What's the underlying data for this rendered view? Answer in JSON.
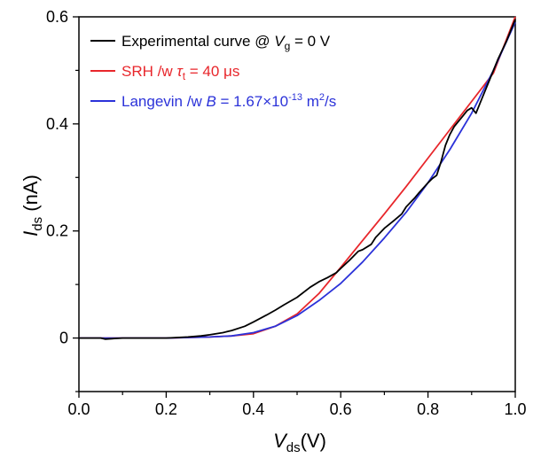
{
  "chart_data": {
    "type": "line",
    "x_axis": {
      "label_main": "V",
      "label_sub": "ds",
      "label_rest": "(V)",
      "range": [
        0.0,
        1.0
      ],
      "ticks": [
        0.0,
        0.2,
        0.4,
        0.6,
        0.8,
        1.0
      ],
      "tick_labels": [
        "0.0",
        "0.2",
        "0.4",
        "0.6",
        "0.8",
        "1.0"
      ]
    },
    "y_axis": {
      "label_main": "I",
      "label_sub": "ds",
      "label_rest": "(nA)",
      "range": [
        -0.1,
        0.6
      ],
      "ticks": [
        0,
        0.2,
        0.4,
        0.6
      ],
      "tick_labels": [
        "0",
        "0.2",
        "0.4",
        "0.6"
      ]
    },
    "grid": false,
    "legend_position": "top-left",
    "legend": [
      {
        "prefix": "Experimental curve @ ",
        "var": "V",
        "sub": "g",
        "suffix": " = 0 V",
        "color": "#000000"
      },
      {
        "prefix": "SRH /w ",
        "var": "τ",
        "sub": "t",
        "suffix": " = 40 μs",
        "color": "#e8262b"
      },
      {
        "prefix": "Langevin /w ",
        "var": "B",
        "sub": "",
        "suffix": " = 1.67×10",
        "sup": "-13",
        "suffix2": " m",
        "sup2": "2",
        "suffix3": "/s",
        "color": "#2b32d9"
      }
    ],
    "series": [
      {
        "color": "#000000",
        "x": [
          0.0,
          0.05,
          0.06,
          0.1,
          0.2,
          0.25,
          0.28,
          0.3,
          0.33,
          0.35,
          0.38,
          0.4,
          0.43,
          0.45,
          0.47,
          0.5,
          0.53,
          0.55,
          0.57,
          0.59,
          0.6,
          0.62,
          0.64,
          0.65,
          0.67,
          0.68,
          0.7,
          0.72,
          0.74,
          0.75,
          0.77,
          0.78,
          0.8,
          0.81,
          0.82,
          0.83,
          0.84,
          0.85,
          0.86,
          0.88,
          0.89,
          0.9,
          0.91,
          0.92,
          0.94,
          0.96,
          0.98,
          1.0
        ],
        "y": [
          0.0,
          0.0,
          -0.002,
          0.0,
          0.0,
          0.002,
          0.004,
          0.006,
          0.01,
          0.014,
          0.022,
          0.03,
          0.043,
          0.052,
          0.062,
          0.076,
          0.095,
          0.105,
          0.113,
          0.122,
          0.13,
          0.145,
          0.162,
          0.165,
          0.175,
          0.188,
          0.205,
          0.218,
          0.232,
          0.245,
          0.262,
          0.272,
          0.29,
          0.298,
          0.304,
          0.33,
          0.36,
          0.38,
          0.395,
          0.415,
          0.425,
          0.43,
          0.42,
          0.44,
          0.48,
          0.52,
          0.555,
          0.595
        ]
      },
      {
        "color": "#e8262b",
        "x": [
          0.0,
          0.2,
          0.3,
          0.35,
          0.4,
          0.45,
          0.5,
          0.55,
          0.6,
          0.65,
          0.7,
          0.75,
          0.8,
          0.85,
          0.9,
          0.95,
          1.0
        ],
        "y": [
          0.0,
          0.0,
          0.002,
          0.004,
          0.008,
          0.022,
          0.045,
          0.083,
          0.132,
          0.182,
          0.232,
          0.283,
          0.336,
          0.389,
          0.442,
          0.495,
          0.6
        ]
      },
      {
        "color": "#2b32d9",
        "x": [
          0.0,
          0.2,
          0.3,
          0.35,
          0.4,
          0.45,
          0.5,
          0.55,
          0.6,
          0.65,
          0.7,
          0.75,
          0.8,
          0.85,
          0.9,
          0.95,
          1.0
        ],
        "y": [
          0.0,
          0.0,
          0.002,
          0.004,
          0.01,
          0.022,
          0.042,
          0.07,
          0.102,
          0.142,
          0.187,
          0.235,
          0.29,
          0.352,
          0.42,
          0.5,
          0.59
        ]
      }
    ]
  }
}
